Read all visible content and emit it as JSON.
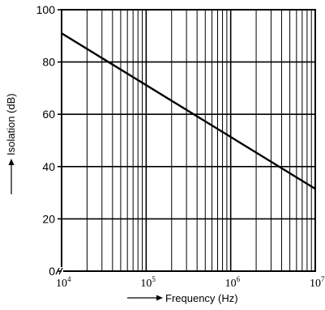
{
  "chart_data": {
    "type": "line",
    "title": "",
    "xlabel": "Frequency (Hz)",
    "ylabel": "Isolation (dB)",
    "x_scale": "log",
    "xlim": [
      10000,
      10000000
    ],
    "ylim": [
      0,
      100
    ],
    "grid": true,
    "axis_break": "x",
    "y_ticks": [
      "0",
      "20",
      "40",
      "60",
      "80",
      "100"
    ],
    "x_ticks": [
      {
        "base": "10",
        "exp": "4"
      },
      {
        "base": "10",
        "exp": "5"
      },
      {
        "base": "10",
        "exp": "6"
      },
      {
        "base": "10",
        "exp": "7"
      }
    ],
    "series": [
      {
        "x": [
          10000,
          10000000
        ],
        "y": [
          91,
          31.5
        ]
      }
    ]
  }
}
